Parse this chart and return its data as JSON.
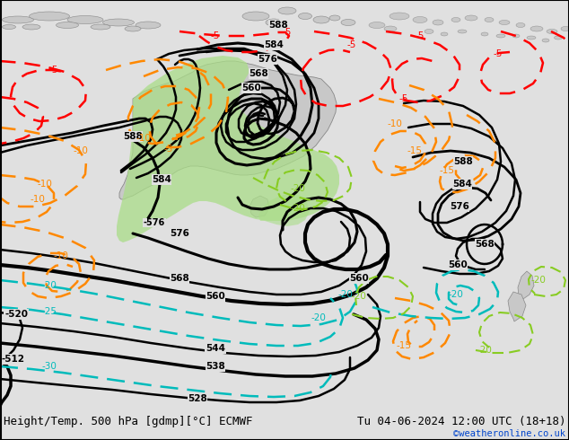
{
  "title_left": "Height/Temp. 500 hPa [gdmp][°C] ECMWF",
  "title_right": "Tu 04-06-2024 12:00 UTC (18+18)",
  "watermark": "©weatheronline.co.uk",
  "bg_color": "#e0e0e0",
  "land_color": "#c8c8c8",
  "green_fill_color": "#aadd88",
  "black": "#000000",
  "red": "#ff0000",
  "orange": "#ff8800",
  "cyan": "#00bbbb",
  "green_line": "#88cc22",
  "title_fontsize": 9,
  "watermark_color": "#0044cc",
  "fig_width": 6.34,
  "fig_height": 4.9,
  "dpi": 100
}
